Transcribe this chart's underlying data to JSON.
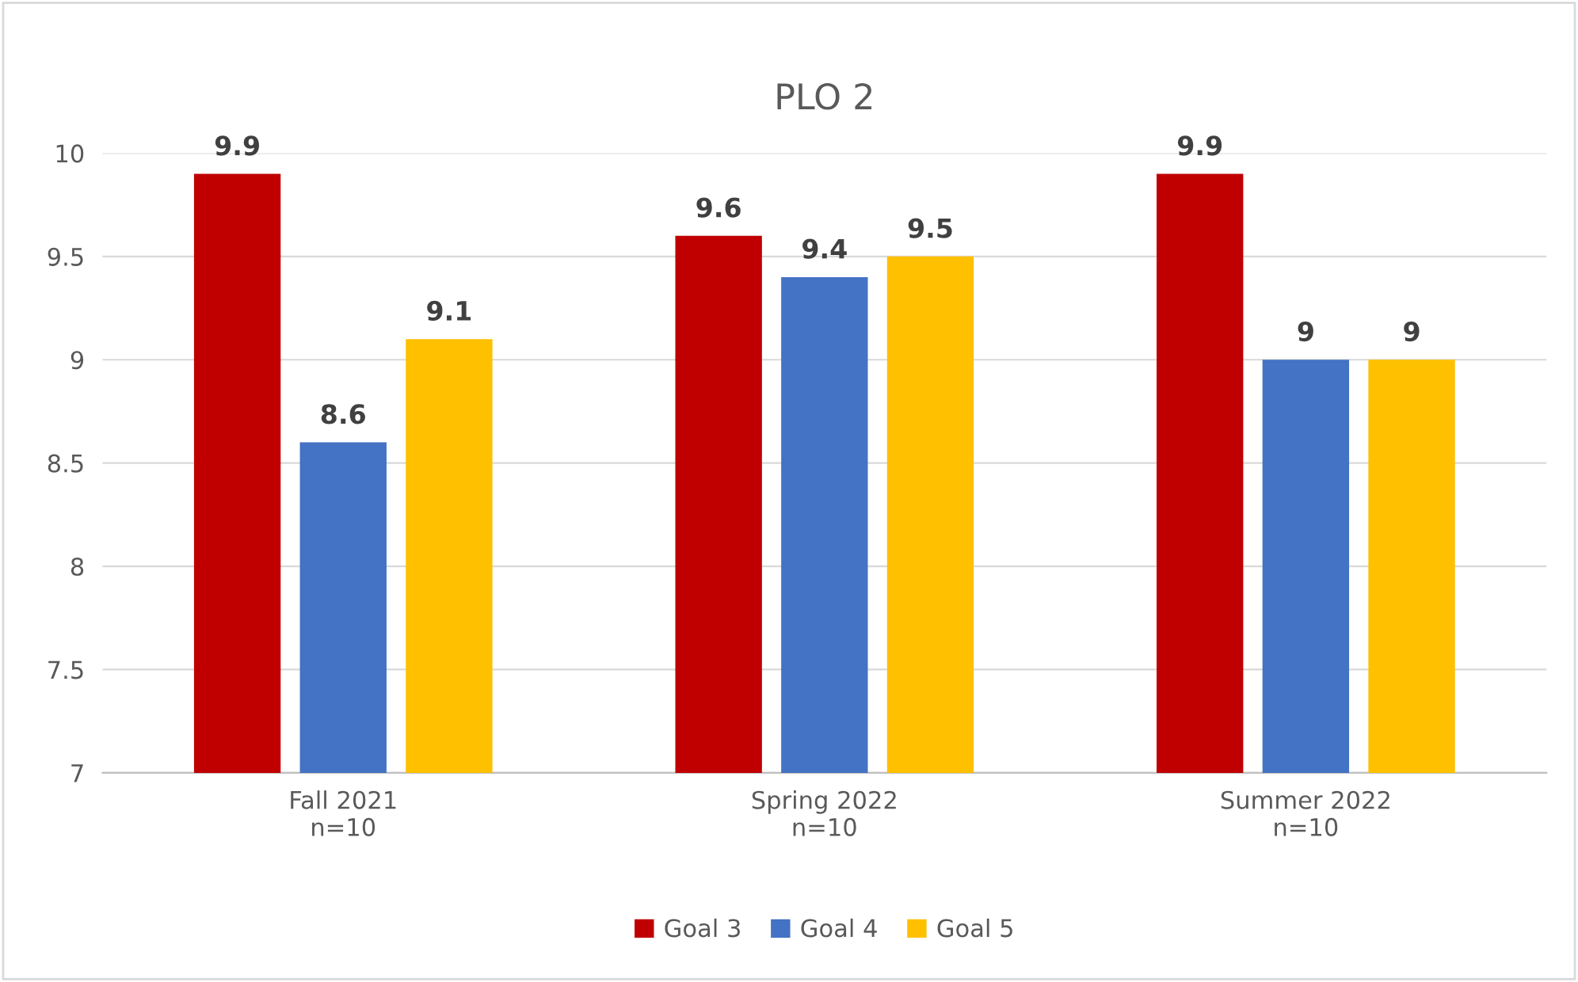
{
  "chart_data": {
    "type": "bar",
    "title": "PLO 2",
    "categories": [
      "Fall 2021\nn=10",
      "Spring 2022\nn=10",
      "Summer 2022\nn=10"
    ],
    "series": [
      {
        "name": "Goal 3",
        "color": "#c00000",
        "values": [
          9.9,
          9.6,
          9.9
        ]
      },
      {
        "name": "Goal 4",
        "color": "#4472c4",
        "values": [
          8.6,
          9.4,
          9
        ]
      },
      {
        "name": "Goal 5",
        "color": "#ffc000",
        "values": [
          9.1,
          9.5,
          9
        ]
      }
    ],
    "ylim": [
      7,
      10
    ],
    "yticks": [
      7,
      7.5,
      8,
      8.5,
      9,
      9.5,
      10
    ],
    "grid": "y",
    "legend": "bottom",
    "data_labels": true
  }
}
